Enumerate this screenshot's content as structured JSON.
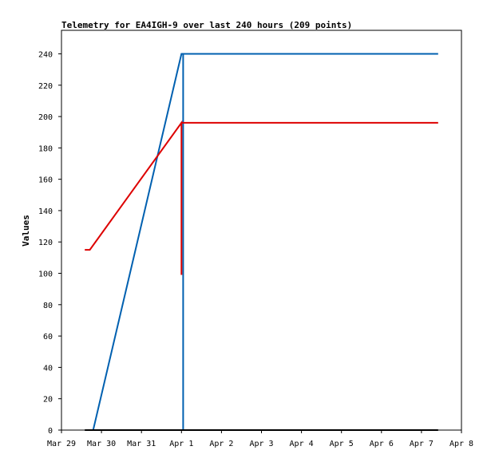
{
  "chart_data": {
    "type": "line",
    "title": "Telemetry for EA4IGH-9 over last 240 hours (209 points)",
    "xlabel": "",
    "ylabel": "Values",
    "x_unit": "date",
    "xlim": [
      "2024-03-29T00:00",
      "2024-04-08T00:00"
    ],
    "ylim": [
      0,
      255
    ],
    "x_ticks": [
      "Mar 29",
      "Mar 30",
      "Mar 31",
      "Apr 1",
      "Apr 2",
      "Apr 3",
      "Apr 4",
      "Apr 5",
      "Apr 6",
      "Apr 7",
      "Apr 8"
    ],
    "y_ticks": [
      0,
      20,
      40,
      60,
      80,
      100,
      120,
      140,
      160,
      180,
      200,
      220,
      240
    ],
    "grid": false,
    "legend": "none",
    "series": [
      {
        "color": "#0060b0",
        "points": [
          [
            "2024-03-29T17:00",
            0
          ],
          [
            "2024-03-29T19:00",
            0
          ],
          [
            "2024-04-01T00:00",
            240
          ],
          [
            "2024-04-01T01:00",
            240
          ],
          [
            "2024-04-01T01:00",
            0
          ],
          [
            "2024-04-01T01:00",
            240
          ],
          [
            "2024-04-07T10:00",
            240
          ]
        ]
      },
      {
        "color": "#dd0000",
        "points": [
          [
            "2024-03-29T14:00",
            115
          ],
          [
            "2024-03-29T17:00",
            115
          ],
          [
            "2024-04-01T00:00",
            196
          ],
          [
            "2024-04-01T00:00",
            99
          ],
          [
            "2024-04-01T00:00",
            196
          ],
          [
            "2024-04-07T10:00",
            196
          ]
        ]
      },
      {
        "color": "#000000",
        "points": [
          [
            "2024-03-29T14:00",
            0
          ],
          [
            "2024-04-07T10:00",
            0
          ]
        ]
      }
    ]
  }
}
